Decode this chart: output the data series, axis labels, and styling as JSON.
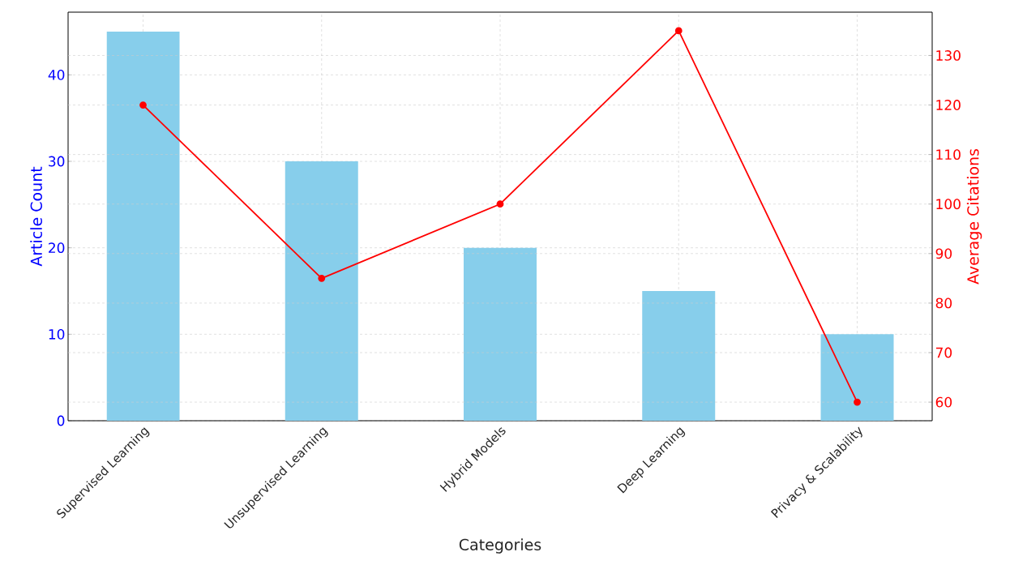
{
  "chart_data": {
    "type": "bar",
    "xlabel": "Categories",
    "ylabel": "Article Count",
    "y2label": "Average Citations",
    "categories": [
      "Supervised Learning",
      "Unsupervised Learning",
      "Hybrid Models",
      "Deep Learning",
      "Privacy & Scalability"
    ],
    "series": [
      {
        "color": "#87ceeb",
        "values": [
          45,
          30,
          20,
          15,
          10
        ]
      },
      {
        "type": "line",
        "axis": "y2",
        "color": "#ff0000",
        "values": [
          120,
          85,
          100,
          135,
          60
        ]
      }
    ],
    "ylim": [
      0,
      47.25
    ],
    "yticks": [
      0,
      10,
      20,
      30,
      40
    ],
    "y2lim": [
      56.25,
      138.75
    ],
    "y2ticks": [
      60,
      70,
      80,
      90,
      100,
      110,
      120,
      130
    ],
    "grid": true,
    "marker": "circle",
    "line_style": "solid"
  }
}
